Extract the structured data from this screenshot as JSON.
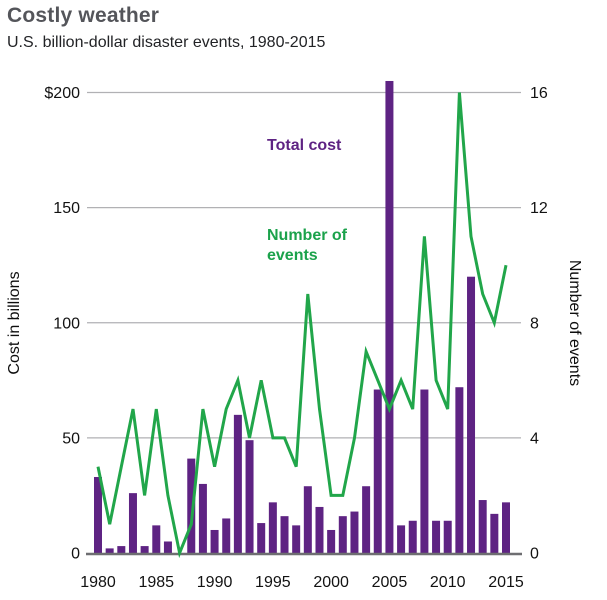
{
  "header": {
    "title": "Costly weather",
    "subtitle": "U.S. billion-dollar disaster events, 1980-2015"
  },
  "annotations": {
    "bars_label": "Total cost",
    "line_label": "Number of events"
  },
  "axes": {
    "left_title": "Cost in billions",
    "right_title": "Number of events",
    "left_ticks": [
      {
        "label": "$200",
        "value": 200
      },
      {
        "label": "150",
        "value": 150
      },
      {
        "label": "100",
        "value": 100
      },
      {
        "label": "50",
        "value": 50
      },
      {
        "label": "0",
        "value": 0
      }
    ],
    "right_ticks": [
      {
        "label": "16",
        "value": 16
      },
      {
        "label": "12",
        "value": 12
      },
      {
        "label": "8",
        "value": 8
      },
      {
        "label": "4",
        "value": 4
      },
      {
        "label": "0",
        "value": 0
      }
    ],
    "x_ticks": [
      {
        "label": "1980",
        "year": 1980
      },
      {
        "label": "1985",
        "year": 1985
      },
      {
        "label": "1990",
        "year": 1990
      },
      {
        "label": "1995",
        "year": 1995
      },
      {
        "label": "2000",
        "year": 2000
      },
      {
        "label": "2005",
        "year": 2005
      },
      {
        "label": "2010",
        "year": 2010
      },
      {
        "label": "2015",
        "year": 2015
      }
    ]
  },
  "colors": {
    "bar_purple": "#5e2383",
    "line_green": "#21a64a",
    "grid_gray": "#b1b1b4",
    "baseline_gray": "#6e6e71",
    "title_gray": "#54555a",
    "text_black": "#121212"
  },
  "chart_data": {
    "type": "bar+line",
    "title": "Costly weather",
    "subtitle": "U.S. billion-dollar disaster events, 1980-2015",
    "years": [
      1980,
      1981,
      1982,
      1983,
      1984,
      1985,
      1986,
      1987,
      1988,
      1989,
      1990,
      1991,
      1992,
      1993,
      1994,
      1995,
      1996,
      1997,
      1998,
      1999,
      2000,
      2001,
      2002,
      2003,
      2004,
      2005,
      2006,
      2007,
      2008,
      2009,
      2010,
      2011,
      2012,
      2013,
      2014,
      2015
    ],
    "series": [
      {
        "name": "Total cost",
        "type": "bar",
        "axis": "left",
        "values": [
          33,
          2,
          3,
          26,
          3,
          12,
          5,
          0,
          41,
          30,
          10,
          15,
          60,
          49,
          13,
          22,
          16,
          12,
          29,
          20,
          10,
          16,
          18,
          29,
          71,
          205,
          12,
          14,
          71,
          14,
          14,
          72,
          120,
          23,
          17,
          22
        ]
      },
      {
        "name": "Number of events",
        "type": "line",
        "axis": "right",
        "values": [
          3,
          1,
          3,
          5,
          2,
          5,
          2,
          0,
          1,
          5,
          3,
          5,
          6,
          4,
          6,
          4,
          4,
          3,
          9,
          5,
          2,
          2,
          4,
          7,
          6,
          5,
          6,
          5,
          11,
          6,
          5,
          16,
          11,
          9,
          8,
          10
        ]
      }
    ],
    "left_axis": {
      "label": "Cost in billions",
      "range": [
        0,
        200
      ],
      "ticks": [
        0,
        50,
        100,
        150,
        200
      ]
    },
    "right_axis": {
      "label": "Number of events",
      "range": [
        0,
        16
      ],
      "ticks": [
        0,
        4,
        8,
        12,
        16
      ]
    },
    "x_axis": {
      "tick_years": [
        1980,
        1985,
        1990,
        1995,
        2000,
        2005,
        2010,
        2015
      ]
    },
    "grid": "horizontal",
    "legend_position": "inline-annotations"
  }
}
